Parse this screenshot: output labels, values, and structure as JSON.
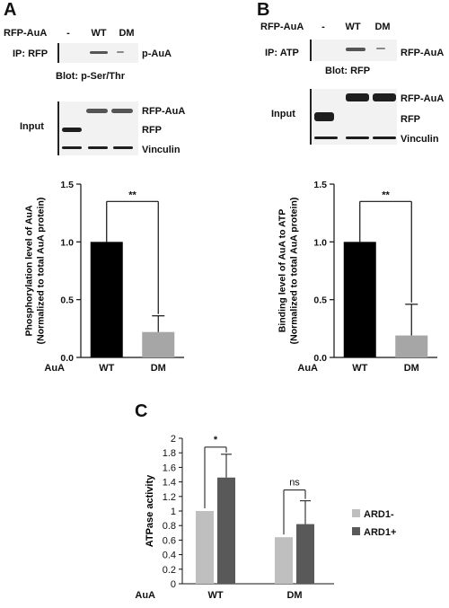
{
  "panels": {
    "A": {
      "letter": "A",
      "rfp_auaa_label": "RFP-AuA",
      "lanes": [
        "-",
        "WT",
        "DM"
      ],
      "ip_label": "IP: RFP",
      "ip_band_label": "p-AuA",
      "blot_label": "Blot: p-Ser/Thr",
      "input_label": "Input",
      "input_rows": [
        "RFP-AuA",
        "RFP",
        "Vinculin"
      ]
    },
    "B": {
      "letter": "B",
      "rfp_auaa_label": "RFP-AuA",
      "lanes": [
        "-",
        "WT",
        "DM"
      ],
      "ip_label": "IP: ATP",
      "ip_band_label": "RFP-AuA",
      "blot_label": "Blot: RFP",
      "input_label": "Input",
      "input_rows": [
        "RFP-AuA",
        "RFP",
        "Vinculin"
      ]
    },
    "C": {
      "letter": "C"
    }
  },
  "chart_data": [
    {
      "type": "bar",
      "categories": [
        "WT",
        "DM"
      ],
      "values": [
        1.0,
        0.22
      ],
      "errors": [
        0,
        0.14
      ],
      "ylabel": "Phosphorylation level of AuA\n(Normalized to total AuA protein)",
      "row_label": "AuA",
      "ylim": [
        0,
        1.5
      ],
      "yticks": [
        "0.0",
        "0.5",
        "1.0",
        "1.5"
      ],
      "colors": [
        "#000000",
        "#a6a6a6"
      ],
      "significance": "**",
      "grid": false
    },
    {
      "type": "bar",
      "categories": [
        "WT",
        "DM"
      ],
      "values": [
        1.0,
        0.19
      ],
      "errors": [
        0,
        0.27
      ],
      "ylabel": "Binding level of AuA to ATP\n(Normalized to total AuA protein)",
      "row_label": "AuA",
      "ylim": [
        0,
        1.5
      ],
      "yticks": [
        "0.0",
        "0.5",
        "1.0",
        "1.5"
      ],
      "colors": [
        "#000000",
        "#a6a6a6"
      ],
      "significance": "**",
      "grid": false
    },
    {
      "type": "bar",
      "categories": [
        "WT",
        "DM"
      ],
      "series": [
        {
          "name": "ARD1-",
          "values": [
            1.0,
            0.64
          ],
          "errors": [
            0,
            0
          ]
        },
        {
          "name": "ARD1+",
          "values": [
            1.46,
            0.82
          ],
          "errors": [
            0.32,
            0.32
          ]
        }
      ],
      "ylabel": "ATPase activity",
      "row_label": "AuA",
      "ylim": [
        0,
        2
      ],
      "yticks": [
        "0",
        "0.2",
        "0.4",
        "0.6",
        "0.8",
        "1",
        "1.2",
        "1.4",
        "1.6",
        "1.8",
        "2"
      ],
      "colors": [
        "#bfbfbf",
        "#595959"
      ],
      "significance": [
        "*",
        "ns"
      ],
      "legend": "right",
      "grid": false
    }
  ]
}
